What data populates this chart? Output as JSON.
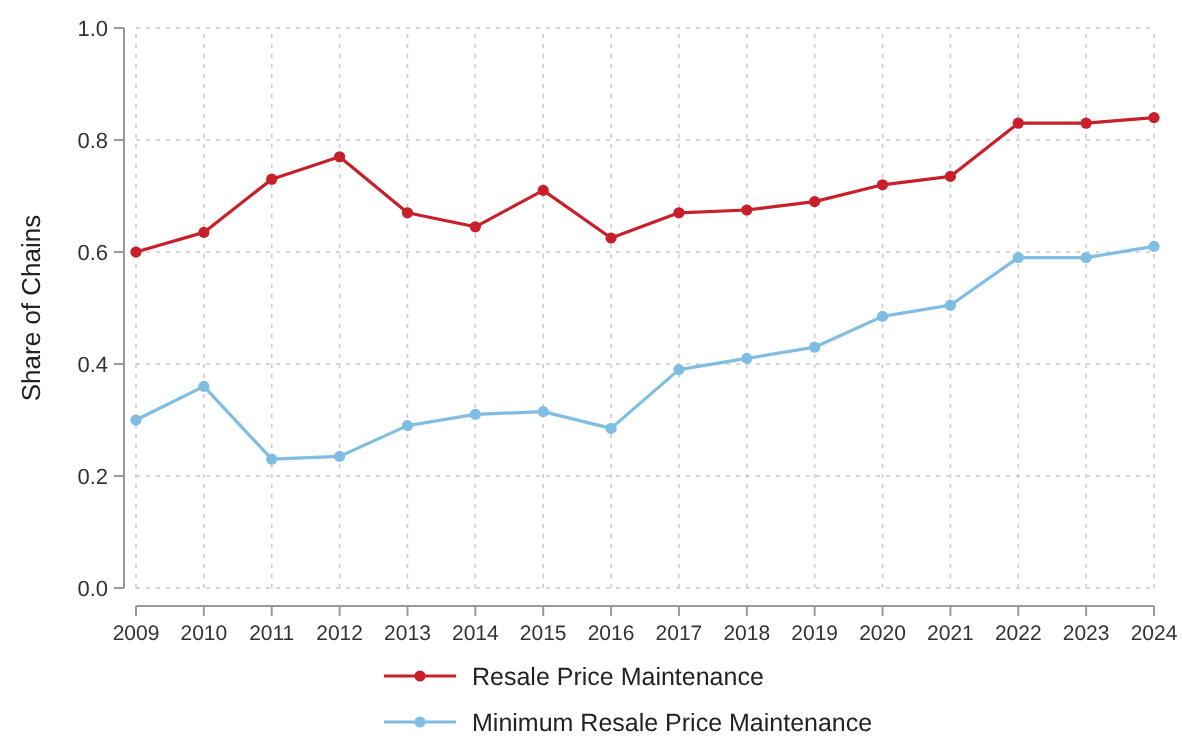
{
  "chart_data": {
    "type": "line",
    "ylabel": "Share of Chains",
    "x": [
      2009,
      2010,
      2011,
      2012,
      2013,
      2014,
      2015,
      2016,
      2017,
      2018,
      2019,
      2020,
      2021,
      2022,
      2023,
      2024
    ],
    "xlim": [
      2009,
      2024
    ],
    "xticks": [
      2009,
      2010,
      2011,
      2012,
      2013,
      2014,
      2015,
      2016,
      2017,
      2018,
      2019,
      2020,
      2021,
      2022,
      2023,
      2024
    ],
    "ylim": [
      0,
      1
    ],
    "yticks": [
      {
        "value": 0,
        "label": "0.0"
      },
      0.2,
      0.4,
      0.6,
      0.8,
      {
        "value": 1,
        "label": "1.0"
      }
    ],
    "grid": true,
    "legend": "bottom",
    "marker": "circle",
    "line_style": "solid",
    "series": [
      {
        "name": "Resale Price Maintenance",
        "color": "#c8202a",
        "values": [
          0.6,
          0.635,
          0.73,
          0.77,
          0.67,
          0.645,
          0.71,
          0.625,
          0.67,
          0.675,
          0.69,
          0.72,
          0.735,
          0.83,
          0.83,
          0.84
        ]
      },
      {
        "name": "Minimum Resale Price Maintenance",
        "color": "#7fbde2",
        "values": [
          0.3,
          0.36,
          0.23,
          0.235,
          0.29,
          0.31,
          0.315,
          0.285,
          0.39,
          0.41,
          0.43,
          0.485,
          0.505,
          0.59,
          0.59,
          0.61
        ]
      }
    ]
  }
}
